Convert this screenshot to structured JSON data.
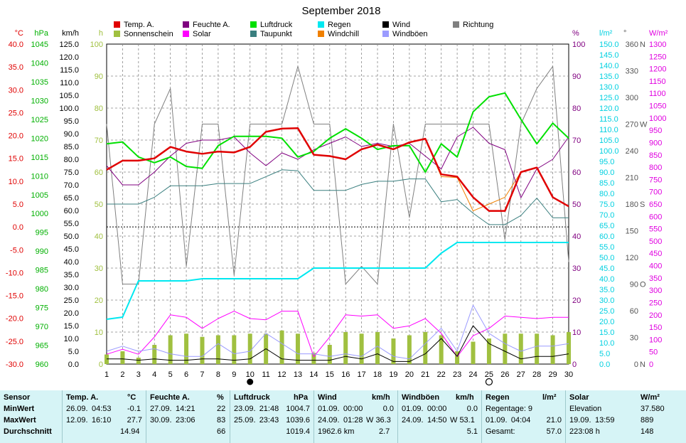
{
  "chart_data": {
    "type": "line",
    "title": "September 2018",
    "x": [
      1,
      2,
      3,
      4,
      5,
      6,
      7,
      8,
      9,
      10,
      11,
      12,
      13,
      14,
      15,
      16,
      17,
      18,
      19,
      20,
      21,
      22,
      23,
      24,
      25,
      26,
      27,
      28,
      29,
      30
    ],
    "units": {
      "temp": "°C",
      "pressure": "hPa",
      "wind": "km/h",
      "sun": "h",
      "humidity": "%",
      "rain": "l/m²",
      "direction": "°",
      "solar": "W/m²"
    },
    "axes": {
      "temp": {
        "min": -30,
        "max": 40,
        "ticks": [
          "40.0",
          "35.0",
          "30.0",
          "25.0",
          "20.0",
          "15.0",
          "10.0",
          "5.0",
          "0.0",
          "-5.0",
          "-10.0",
          "-15.0",
          "-20.0",
          "-25.0",
          "-30.0"
        ]
      },
      "pressure": {
        "min": 960,
        "max": 1045
      },
      "wind": {
        "min": 0,
        "max": 125
      },
      "sun": {
        "min": 0,
        "max": 100
      },
      "humidity": {
        "min": 0,
        "max": 100
      },
      "rain": {
        "min": 0,
        "max": 150
      },
      "direction": {
        "min": 0,
        "max": 360,
        "labels": {
          "360": "N",
          "270": "W",
          "180": "S",
          "90": "O",
          "0": "N"
        }
      },
      "solar": {
        "min": 0,
        "max": 1300
      }
    },
    "series": [
      {
        "name": "Temp. A.",
        "color": "#e00000",
        "axis": "temp",
        "values": [
          12.5,
          14.5,
          14.5,
          15,
          17.5,
          16.5,
          16,
          16.5,
          16.3,
          17.5,
          20.8,
          21.5,
          21.6,
          15.8,
          15.5,
          14.8,
          17,
          18,
          17,
          18.5,
          19.3,
          11.5,
          11,
          6.5,
          3.5,
          3.5,
          12,
          13,
          6.5,
          4.5
        ]
      },
      {
        "name": "Feuchte A.",
        "color": "#800080",
        "axis": "humidity",
        "values": [
          62,
          56,
          56,
          60,
          65,
          69,
          70,
          70,
          71,
          66,
          62,
          66,
          64,
          67,
          69,
          71,
          68,
          69,
          68,
          69,
          65,
          61,
          71,
          74,
          69,
          67,
          52,
          61,
          64,
          71
        ]
      },
      {
        "name": "Luftdruck",
        "color": "#00e000",
        "axis": "pressure",
        "values": [
          1018.5,
          1019,
          1015,
          1013.5,
          1015,
          1012.5,
          1012,
          1018,
          1020.5,
          1020.5,
          1020.5,
          1020,
          1015,
          1016.5,
          1020,
          1022.5,
          1020,
          1017,
          1018,
          1018,
          1011,
          1018.5,
          1015,
          1027,
          1031,
          1032,
          1025,
          1018.5,
          1024,
          1020
        ]
      },
      {
        "name": "Regen",
        "color": "#00e8f0",
        "axis": "rain",
        "values": [
          21,
          22,
          39,
          39,
          39,
          39,
          40,
          40,
          40,
          40,
          40,
          40,
          40,
          45,
          45,
          45,
          45,
          45,
          45,
          45,
          45,
          52,
          57,
          57,
          57,
          57,
          57,
          57,
          57,
          57
        ]
      },
      {
        "name": "Wind",
        "color": "#000000",
        "axis": "wind",
        "values": [
          2,
          2,
          1.5,
          2,
          1.5,
          1.5,
          2,
          2,
          1.5,
          2,
          6,
          2,
          1.5,
          1.5,
          1.5,
          3,
          2,
          4,
          1,
          1,
          4,
          10,
          3,
          15,
          8,
          5,
          2,
          3,
          3,
          4
        ]
      },
      {
        "name": "Windböen",
        "color": "#9b9bff",
        "axis": "wind",
        "values": [
          5,
          7,
          5,
          6,
          4,
          3,
          3,
          8,
          4,
          5,
          12,
          8,
          4,
          4,
          3,
          4,
          3,
          7,
          3,
          2,
          8,
          14,
          5,
          23,
          12,
          8,
          5,
          7,
          7,
          8
        ]
      },
      {
        "name": "Sonnenschein",
        "color": "#a0c040",
        "axis": "sun",
        "type": "bar",
        "values": [
          3,
          4,
          2,
          6,
          9,
          9.5,
          8.5,
          9,
          9,
          9.5,
          9.5,
          10.5,
          9.5,
          3.5,
          6,
          10,
          9.5,
          10,
          8,
          9,
          10,
          9,
          4,
          7,
          8,
          9.5,
          9.5,
          9.5,
          9,
          10
        ]
      },
      {
        "name": "Solar",
        "color": "#ff00ff",
        "axis": "solar",
        "values": [
          40,
          60,
          40,
          110,
          200,
          190,
          145,
          185,
          215,
          185,
          180,
          215,
          215,
          30,
          110,
          200,
          195,
          200,
          145,
          155,
          185,
          125,
          30,
          115,
          145,
          195,
          190,
          185,
          190,
          190
        ]
      },
      {
        "name": "Taupunkt",
        "color": "#3a7f7f",
        "axis": "temp",
        "values": [
          5,
          5,
          5,
          6.5,
          9,
          9,
          9,
          9.5,
          9.5,
          9.5,
          11,
          12.5,
          12.3,
          8,
          8,
          8,
          9.3,
          10,
          10,
          10.5,
          10.5,
          5.5,
          6,
          3,
          0.5,
          0.5,
          2.5,
          6.3,
          2,
          2
        ]
      },
      {
        "name": "Windchill",
        "color": "#f08000",
        "axis": "temp",
        "values": [
          12.5,
          14.5,
          14.5,
          15,
          17.5,
          16.5,
          16,
          16.5,
          16.3,
          17.5,
          20.8,
          21.5,
          21.6,
          15.8,
          15.5,
          14.8,
          17,
          18,
          17,
          18.5,
          19.3,
          11,
          10.8,
          3.5,
          5,
          6.5,
          12,
          13,
          6.5,
          4.5
        ]
      },
      {
        "name": "Richtung",
        "color": "#808080",
        "axis": "direction",
        "values": [
          270,
          90,
          90,
          270,
          310,
          110,
          270,
          270,
          100,
          270,
          270,
          270,
          335,
          270,
          270,
          90,
          110,
          90,
          270,
          165,
          270,
          270,
          270,
          270,
          270,
          140,
          270,
          310,
          335,
          115
        ]
      }
    ],
    "legend": [
      {
        "name": "Temp. A.",
        "color": "#e00000"
      },
      {
        "name": "Feuchte A.",
        "color": "#800080"
      },
      {
        "name": "Luftdruck",
        "color": "#00e000"
      },
      {
        "name": "Regen",
        "color": "#00e8f0"
      },
      {
        "name": "Wind",
        "color": "#000000"
      },
      {
        "name": "Richtung",
        "color": "#808080"
      },
      {
        "name": "Sonnenschein",
        "color": "#a0c040"
      },
      {
        "name": "Solar",
        "color": "#ff00ff"
      },
      {
        "name": "Taupunkt",
        "color": "#3a7f7f"
      },
      {
        "name": "Windchill",
        "color": "#f08000"
      },
      {
        "name": "Windböen",
        "color": "#9b9bff"
      }
    ],
    "moon": {
      "new_moon_day": 10,
      "full_moon_day": 25
    },
    "grid": true
  },
  "stats": {
    "sensor": {
      "header": "Sensor",
      "min": "MinWert",
      "max": "MaxWert",
      "avg": "Durchschnitt"
    },
    "temp": {
      "header": "Temp. A.",
      "unit": "°C",
      "min_date": "26.09.",
      "min_time": "04:53",
      "min_val": "-0.1",
      "max_date": "12.09.",
      "max_time": "16:10",
      "max_val": "27.7",
      "avg": "14.94"
    },
    "humidity": {
      "header": "Feuchte A.",
      "unit": "%",
      "min_date": "27.09.",
      "min_time": "14:21",
      "min_val": "22",
      "max_date": "30.09.",
      "max_time": "23:06",
      "max_val": "83",
      "avg": "66"
    },
    "pressure": {
      "header": "Luftdruck",
      "unit": "hPa",
      "min_date": "23.09.",
      "min_time": "21:48",
      "min_val": "1004.7",
      "max_date": "25.09.",
      "max_time": "23:43",
      "max_val": "1039.6",
      "avg": "1019.4"
    },
    "wind": {
      "header": "Wind",
      "unit": "km/h",
      "min_date": "01.09.",
      "min_time": "00:00",
      "min_val": "0.0",
      "max_date": "24.09.",
      "max_time": "01:28",
      "max_val": "W 36.3",
      "avg_label": "1962.6 km",
      "avg": "2.7"
    },
    "gust": {
      "header": "Windböen",
      "unit": "km/h",
      "min_date": "01.09.",
      "min_time": "00:00",
      "min_val": "0.0",
      "max_date": "24.09.",
      "max_time": "14:50",
      "max_val": "W 53.1",
      "avg": "5.1"
    },
    "rain": {
      "header": "Regen",
      "unit": "l/m²",
      "row1": "Regentage: 9",
      "max_date": "01.09.",
      "max_time": "04:04",
      "max_val": "21.0",
      "total_label": "Gesamt:",
      "total": "57.0"
    },
    "solar": {
      "header": "Solar",
      "unit": "W/m²",
      "row1_label": "Elevation",
      "row1_val": "37.580",
      "max_date": "19.09.",
      "max_time": "13:59",
      "max_val": "889",
      "row3_label": "223:08 h",
      "row3_val": "148"
    }
  }
}
